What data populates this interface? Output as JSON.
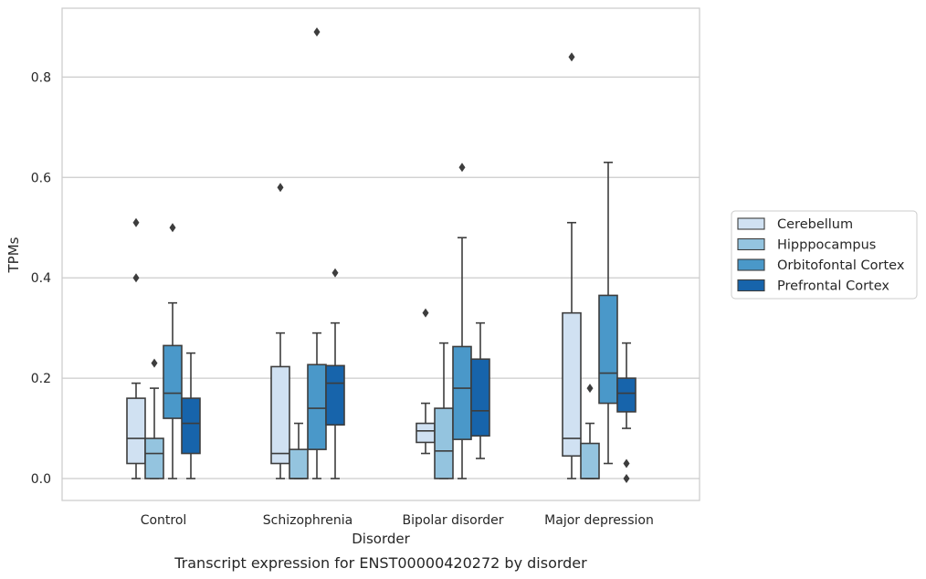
{
  "chart_data": {
    "type": "box",
    "title": "",
    "caption": "Transcript expression for ENST00000420272 by disorder",
    "xlabel": "Disorder",
    "ylabel": "TPMs",
    "ylim": [
      -0.042,
      0.938
    ],
    "yticks": [
      "0.0",
      "0.2",
      "0.4",
      "0.6",
      "0.8"
    ],
    "ytick_values": [
      0.0,
      0.2,
      0.4,
      0.6,
      0.8
    ],
    "grid": "horizontal",
    "legend_placement": "right",
    "categories": [
      "Control",
      "Schizophrenia",
      "Bipolar disorder",
      "Major depression"
    ],
    "series": [
      {
        "name": "Cerebellum",
        "color": "#d0e1f2",
        "boxes": [
          {
            "whislo": 0.0,
            "q1": 0.03,
            "med": 0.08,
            "q3": 0.16,
            "whishi": 0.19,
            "fliers": [
              0.4,
              0.51
            ]
          },
          {
            "whislo": 0.0,
            "q1": 0.03,
            "med": 0.05,
            "q3": 0.223,
            "whishi": 0.29,
            "fliers": [
              0.58
            ]
          },
          {
            "whislo": 0.05,
            "q1": 0.072,
            "med": 0.095,
            "q3": 0.11,
            "whishi": 0.15,
            "fliers": [
              0.33
            ]
          },
          {
            "whislo": 0.0,
            "q1": 0.045,
            "med": 0.08,
            "q3": 0.33,
            "whishi": 0.51,
            "fliers": [
              0.84
            ]
          }
        ]
      },
      {
        "name": "Hipppocampus",
        "color": "#94c4df",
        "boxes": [
          {
            "whislo": 0.0,
            "q1": 0.0,
            "med": 0.05,
            "q3": 0.08,
            "whishi": 0.18,
            "fliers": [
              0.23
            ]
          },
          {
            "whislo": 0.0,
            "q1": 0.0,
            "med": 0.0,
            "q3": 0.058,
            "whishi": 0.11,
            "fliers": []
          },
          {
            "whislo": 0.0,
            "q1": 0.0,
            "med": 0.055,
            "q3": 0.14,
            "whishi": 0.27,
            "fliers": []
          },
          {
            "whislo": 0.0,
            "q1": 0.0,
            "med": 0.0,
            "q3": 0.07,
            "whishi": 0.11,
            "fliers": [
              0.18
            ]
          }
        ]
      },
      {
        "name": "Orbitofontal Cortex",
        "color": "#4a98c9",
        "boxes": [
          {
            "whislo": 0.0,
            "q1": 0.12,
            "med": 0.17,
            "q3": 0.265,
            "whishi": 0.35,
            "fliers": [
              0.5
            ]
          },
          {
            "whislo": 0.0,
            "q1": 0.058,
            "med": 0.14,
            "q3": 0.227,
            "whishi": 0.29,
            "fliers": [
              0.89
            ]
          },
          {
            "whislo": 0.0,
            "q1": 0.078,
            "med": 0.18,
            "q3": 0.263,
            "whishi": 0.48,
            "fliers": [
              0.62
            ]
          },
          {
            "whislo": 0.03,
            "q1": 0.15,
            "med": 0.21,
            "q3": 0.365,
            "whishi": 0.63,
            "fliers": []
          }
        ]
      },
      {
        "name": "Prefrontal Cortex",
        "color": "#1764ab",
        "boxes": [
          {
            "whislo": 0.0,
            "q1": 0.05,
            "med": 0.11,
            "q3": 0.16,
            "whishi": 0.25,
            "fliers": []
          },
          {
            "whislo": 0.0,
            "q1": 0.107,
            "med": 0.19,
            "q3": 0.225,
            "whishi": 0.31,
            "fliers": [
              0.41
            ]
          },
          {
            "whislo": 0.04,
            "q1": 0.085,
            "med": 0.135,
            "q3": 0.238,
            "whishi": 0.31,
            "fliers": []
          },
          {
            "whislo": 0.1,
            "q1": 0.133,
            "med": 0.17,
            "q3": 0.2,
            "whishi": 0.27,
            "fliers": [
              0.03,
              0.0
            ]
          }
        ]
      }
    ]
  }
}
